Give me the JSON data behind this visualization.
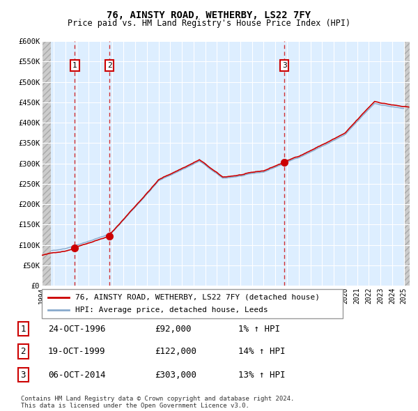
{
  "title": "76, AINSTY ROAD, WETHERBY, LS22 7FY",
  "subtitle": "Price paid vs. HM Land Registry's House Price Index (HPI)",
  "ylim": [
    0,
    600000
  ],
  "yticks": [
    0,
    50000,
    100000,
    150000,
    200000,
    250000,
    300000,
    350000,
    400000,
    450000,
    500000,
    550000,
    600000
  ],
  "ytick_labels": [
    "£0",
    "£50K",
    "£100K",
    "£150K",
    "£200K",
    "£250K",
    "£300K",
    "£350K",
    "£400K",
    "£450K",
    "£500K",
    "£550K",
    "£600K"
  ],
  "sale_year_floats": [
    1996.83,
    1999.8,
    2014.77
  ],
  "sale_prices": [
    92000,
    122000,
    303000
  ],
  "sale_labels": [
    "1",
    "2",
    "3"
  ],
  "sale_color": "#cc0000",
  "hpi_line_color": "#88aacc",
  "plot_bg_color": "#ddeeff",
  "grid_color": "#ffffff",
  "hatch_color": "#cccccc",
  "legend_label_red": "76, AINSTY ROAD, WETHERBY, LS22 7FY (detached house)",
  "legend_label_blue": "HPI: Average price, detached house, Leeds",
  "table_rows": [
    [
      "1",
      "24-OCT-1996",
      "£92,000",
      "1% ↑ HPI"
    ],
    [
      "2",
      "19-OCT-1999",
      "£122,000",
      "14% ↑ HPI"
    ],
    [
      "3",
      "06-OCT-2014",
      "£303,000",
      "13% ↑ HPI"
    ]
  ],
  "footer": "Contains HM Land Registry data © Crown copyright and database right 2024.\nThis data is licensed under the Open Government Licence v3.0.",
  "xlim": [
    1994.0,
    2025.5
  ],
  "hatch_left_end": 1994.75,
  "hatch_right_start": 2025.0
}
